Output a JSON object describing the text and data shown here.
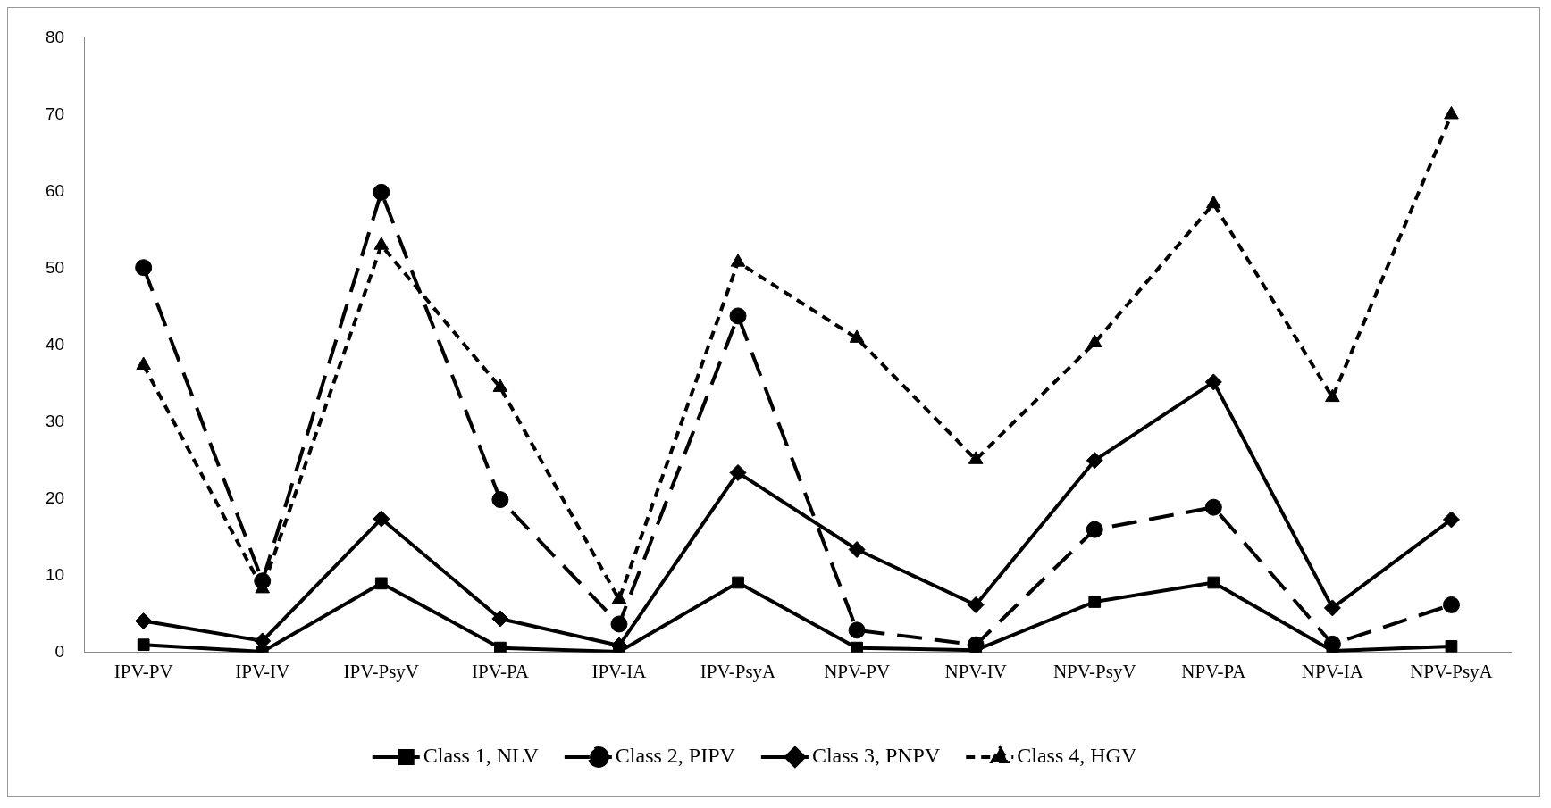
{
  "chart_data": {
    "type": "line",
    "categories": [
      "IPV-PV",
      "IPV-IV",
      "IPV-PsyV",
      "IPV-PA",
      "IPV-IA",
      "IPV-PsyA",
      "NPV-PV",
      "NPV-IV",
      "NPV-PsyV",
      "NPV-PA",
      "NPV-IA",
      "NPV-PsyA"
    ],
    "series": [
      {
        "name": "Class 1, NLV",
        "color": "#000000",
        "marker": "square",
        "line_style": "solid",
        "values": [
          1,
          0.1,
          9,
          0.6,
          0.1,
          9.1,
          0.6,
          0.3,
          6.6,
          9.1,
          0.2,
          0.8
        ]
      },
      {
        "name": "Class 2, PIPV",
        "color": "#000000",
        "marker": "circle",
        "line_style": "dashed",
        "values": [
          50.1,
          9.3,
          59.9,
          19.9,
          3.7,
          43.8,
          2.9,
          1,
          16,
          18.9,
          1.1,
          6.2
        ]
      },
      {
        "name": "Class 3, PNPV",
        "color": "#000000",
        "marker": "diamond",
        "line_style": "solid",
        "values": [
          4.1,
          1.5,
          17.4,
          4.4,
          0.9,
          23.4,
          13.4,
          6.2,
          25,
          35.2,
          5.8,
          17.3
        ]
      },
      {
        "name": "Class 4, HGV",
        "color": "#000000",
        "marker": "triangle",
        "line_style": "dotted",
        "values": [
          37.4,
          8.3,
          53,
          34.5,
          6.9,
          50.8,
          40.9,
          25.1,
          40.3,
          58.4,
          33.2,
          70
        ]
      }
    ],
    "ylim": [
      0,
      80
    ],
    "yticks": [
      0,
      10,
      20,
      30,
      40,
      50,
      60,
      70,
      80
    ],
    "grid": false,
    "legend": "bottom"
  }
}
